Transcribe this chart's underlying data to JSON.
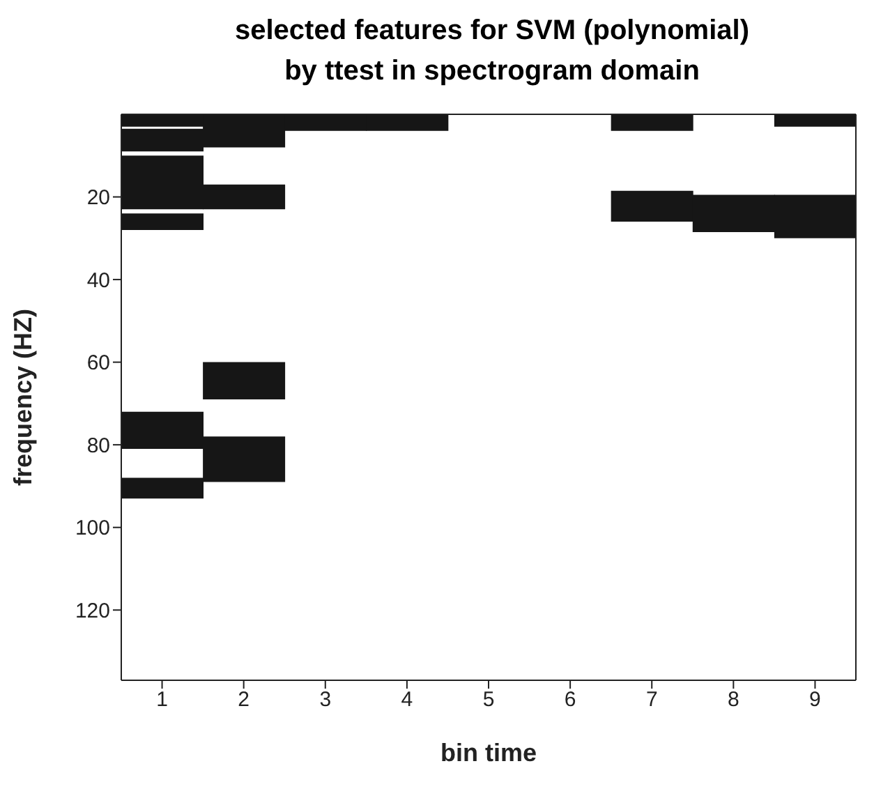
{
  "chart_data": {
    "type": "bar",
    "title": "selected features for SVM (polynomial)\nby ttest in spectrogram domain",
    "xlabel": "bin time",
    "ylabel": "frequency (HZ)",
    "categories": [
      "1",
      "2",
      "3",
      "4",
      "5",
      "6",
      "7",
      "8",
      "9"
    ],
    "series": [
      {
        "color": "#161616",
        "base": [
          0,
          0,
          0,
          0,
          null,
          null,
          0,
          null,
          0
        ],
        "values": [
          3,
          8,
          4,
          4,
          null,
          null,
          4,
          null,
          3
        ]
      },
      {
        "color": "#161616",
        "base": [
          3.5,
          17,
          null,
          null,
          null,
          null,
          18.5,
          19.5,
          19.5
        ],
        "values": [
          5.5,
          6,
          null,
          null,
          null,
          null,
          7.5,
          9,
          10.5
        ]
      },
      {
        "color": "#161616",
        "base": [
          10,
          60,
          null,
          null,
          null,
          null,
          null,
          null,
          null
        ],
        "values": [
          13,
          9,
          null,
          null,
          null,
          null,
          null,
          null,
          null
        ]
      },
      {
        "color": "#161616",
        "base": [
          24,
          78,
          null,
          null,
          null,
          null,
          null,
          null,
          null
        ],
        "values": [
          4,
          11,
          null,
          null,
          null,
          null,
          null,
          null,
          null
        ]
      },
      {
        "color": "#161616",
        "base": [
          72,
          null,
          null,
          null,
          null,
          null,
          null,
          null,
          null
        ],
        "values": [
          9,
          null,
          null,
          null,
          null,
          null,
          null,
          null,
          null
        ]
      },
      {
        "color": "#161616",
        "base": [
          88,
          null,
          null,
          null,
          null,
          null,
          null,
          null,
          null
        ],
        "values": [
          5,
          null,
          null,
          null,
          null,
          null,
          null,
          null,
          null
        ]
      }
    ],
    "ylim": [
      137,
      0
    ],
    "yticks": [
      20,
      40,
      60,
      80,
      100,
      120
    ],
    "grid": false,
    "legend": false
  }
}
